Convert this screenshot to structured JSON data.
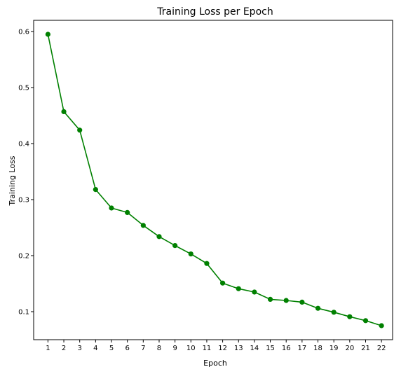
{
  "chart_data": {
    "type": "line",
    "title": "Training Loss per Epoch",
    "xlabel": "Epoch",
    "ylabel": "Training Loss",
    "x": [
      1,
      2,
      3,
      4,
      5,
      6,
      7,
      8,
      9,
      10,
      11,
      12,
      13,
      14,
      15,
      16,
      17,
      18,
      19,
      20,
      21,
      22
    ],
    "series": [
      {
        "values": [
          0.595,
          0.457,
          0.424,
          0.318,
          0.285,
          0.277,
          0.254,
          0.234,
          0.218,
          0.203,
          0.186,
          0.151,
          0.141,
          0.135,
          0.122,
          0.12,
          0.117,
          0.106,
          0.099,
          0.091,
          0.084,
          0.075
        ],
        "color": "#008000"
      }
    ],
    "xticks": [
      "1",
      "2",
      "3",
      "4",
      "5",
      "6",
      "7",
      "8",
      "9",
      "10",
      "11",
      "12",
      "13",
      "14",
      "15",
      "16",
      "17",
      "18",
      "19",
      "20",
      "21",
      "22"
    ],
    "yticks": [
      "0.1",
      "0.2",
      "0.3",
      "0.4",
      "0.5",
      "0.6"
    ],
    "ylim": [
      0.05,
      0.62
    ],
    "xlim": [
      0.1,
      22.7
    ],
    "grid": false,
    "legend": false
  }
}
